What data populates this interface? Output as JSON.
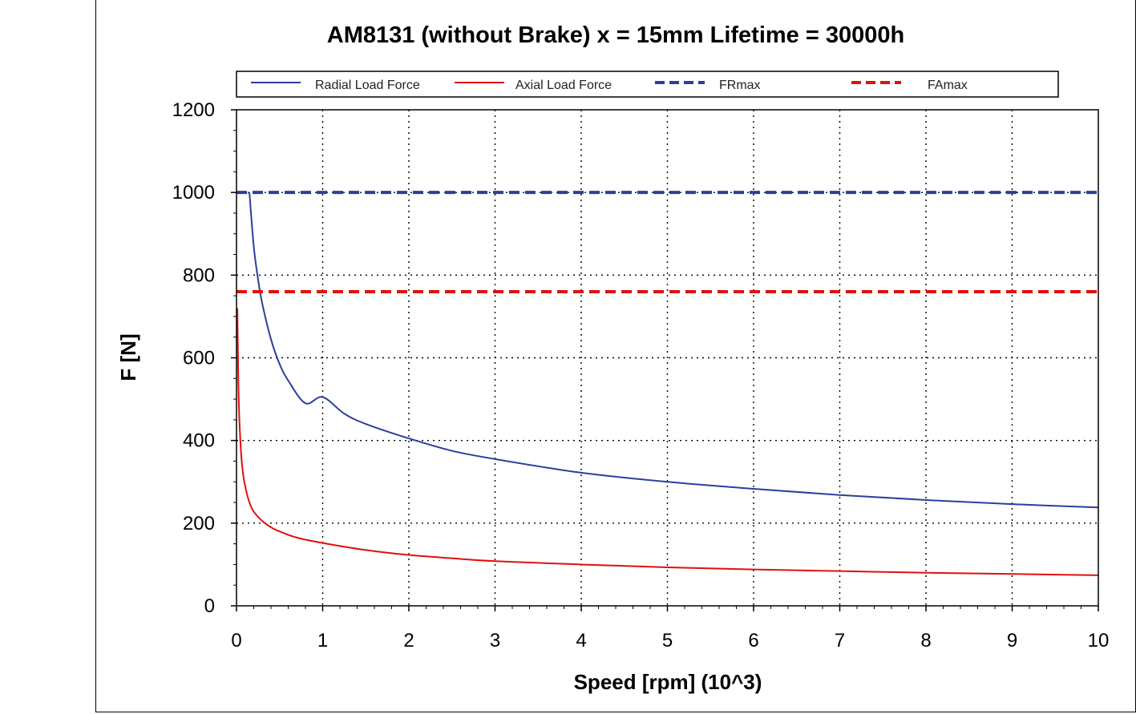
{
  "chart_data": {
    "type": "line",
    "title": "AM8131 (without Brake) x = 15mm Lifetime = 30000h",
    "xlabel": "Speed [rpm] (10^3)",
    "ylabel": "F [N]",
    "xlim": [
      0,
      10
    ],
    "ylim": [
      0,
      1200
    ],
    "x_ticks": [
      "0",
      "1",
      "2",
      "3",
      "4",
      "5",
      "6",
      "7",
      "8",
      "9",
      "10"
    ],
    "y_ticks": [
      "0",
      "200",
      "400",
      "600",
      "800",
      "1000",
      "1200"
    ],
    "grid": true,
    "legend_position": "top",
    "series": [
      {
        "name": "Radial Load Force",
        "color": "#2b3f9e",
        "style": "solid",
        "x": [
          0.15,
          0.2,
          0.25,
          0.3,
          0.4,
          0.5,
          0.6,
          0.8,
          1,
          1.25,
          1.5,
          2,
          2.5,
          3,
          4,
          5,
          6,
          7,
          8,
          9,
          10
        ],
        "y": [
          1000,
          870,
          790,
          730,
          645,
          585,
          545,
          490,
          505,
          465,
          440,
          405,
          375,
          355,
          322,
          300,
          283,
          268,
          256,
          246,
          238
        ]
      },
      {
        "name": "Axial Load Force",
        "color": "#e01010",
        "style": "solid",
        "x": [
          0.01,
          0.02,
          0.03,
          0.05,
          0.07,
          0.1,
          0.15,
          0.2,
          0.3,
          0.4,
          0.5,
          0.7,
          1,
          1.5,
          2,
          2.5,
          3,
          4,
          5,
          6,
          7,
          8,
          9,
          10
        ],
        "y": [
          720,
          560,
          470,
          380,
          330,
          290,
          250,
          228,
          205,
          190,
          180,
          165,
          152,
          135,
          123,
          115,
          108,
          100,
          93,
          88,
          84,
          80,
          77,
          74
        ]
      },
      {
        "name": "FRmax",
        "color": "#2b3f9e",
        "style": "dashed",
        "x": [
          0,
          10
        ],
        "y": [
          1000,
          1000
        ]
      },
      {
        "name": "FAmax",
        "color": "#e01010",
        "style": "dashed",
        "x": [
          0,
          10
        ],
        "y": [
          760,
          760
        ]
      }
    ]
  }
}
